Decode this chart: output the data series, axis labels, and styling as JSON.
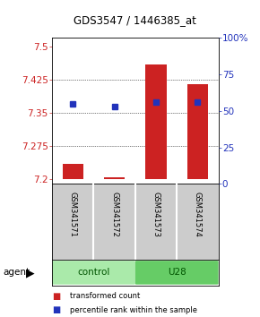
{
  "title": "GDS3547 / 1446385_at",
  "samples": [
    "GSM341571",
    "GSM341572",
    "GSM341573",
    "GSM341574"
  ],
  "groups": [
    "control",
    "control",
    "U28",
    "U28"
  ],
  "bar_values": [
    7.235,
    7.205,
    7.46,
    7.415
  ],
  "bar_bottom": 7.2,
  "blue_values": [
    7.37,
    7.365,
    7.375,
    7.375
  ],
  "ylim_left": [
    7.19,
    7.52
  ],
  "ylim_right": [
    0,
    100
  ],
  "yticks_left": [
    7.2,
    7.275,
    7.35,
    7.425,
    7.5
  ],
  "yticks_right": [
    0,
    25,
    50,
    75,
    100
  ],
  "ytick_labels_right": [
    "0",
    "25",
    "50",
    "75",
    "100%"
  ],
  "bar_color": "#cc2222",
  "blue_color": "#2233bb",
  "group_colors": {
    "control": "#aaeaaa",
    "U28": "#66cc66"
  },
  "background_color": "#ffffff",
  "blue_marker_size": 4,
  "bar_width": 0.5
}
